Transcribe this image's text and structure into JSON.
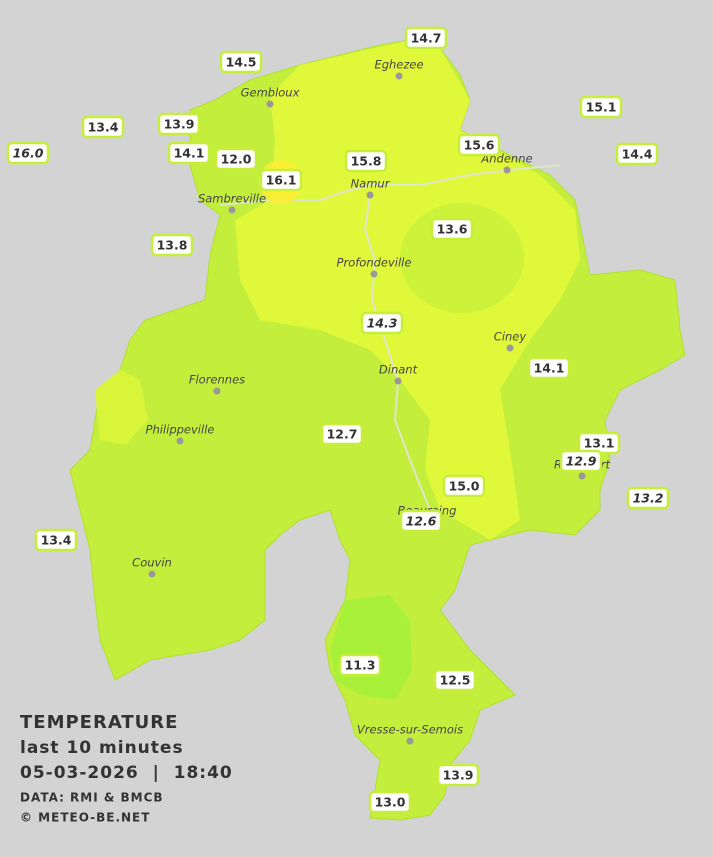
{
  "legend": {
    "title": "TEMPERATURE",
    "subtitle": "last 10 minutes",
    "datetime": "05-03-2026  |  18:40",
    "source": "DATA: RMI & BMCB",
    "credit": "© METEO-BE.NET"
  },
  "towns": [
    "Eghezee",
    "Gembloux",
    "Andenne",
    "Namur",
    "Sambreville",
    "Profondeville",
    "Ciney",
    "Dinant",
    "Florennes",
    "Philippeville",
    "Rochefort",
    "Beauraing",
    "Couvin",
    "Vresse-sur-Semois"
  ],
  "stations": [
    {
      "value": "16.0",
      "italic": true
    },
    {
      "value": "13.4",
      "italic": false
    },
    {
      "value": "14.5",
      "italic": false
    },
    {
      "value": "13.9",
      "italic": false
    },
    {
      "value": "14.1",
      "italic": false
    },
    {
      "value": "12.0",
      "italic": false
    },
    {
      "value": "16.1",
      "italic": false
    },
    {
      "value": "15.8",
      "italic": false
    },
    {
      "value": "14.7",
      "italic": false
    },
    {
      "value": "15.6",
      "italic": false
    },
    {
      "value": "15.1",
      "italic": false
    },
    {
      "value": "14.4",
      "italic": false
    },
    {
      "value": "13.8",
      "italic": false
    },
    {
      "value": "13.6",
      "italic": false
    },
    {
      "value": "14.3",
      "italic": true
    },
    {
      "value": "14.1",
      "italic": false
    },
    {
      "value": "12.7",
      "italic": false
    },
    {
      "value": "13.1",
      "italic": false
    },
    {
      "value": "12.9",
      "italic": true
    },
    {
      "value": "15.0",
      "italic": false
    },
    {
      "value": "13.2",
      "italic": true
    },
    {
      "value": "12.6",
      "italic": true
    },
    {
      "value": "13.4",
      "italic": false
    },
    {
      "value": "11.3",
      "italic": false
    },
    {
      "value": "12.5",
      "italic": false
    },
    {
      "value": "13.9",
      "italic": false
    },
    {
      "value": "13.0",
      "italic": false
    }
  ]
}
